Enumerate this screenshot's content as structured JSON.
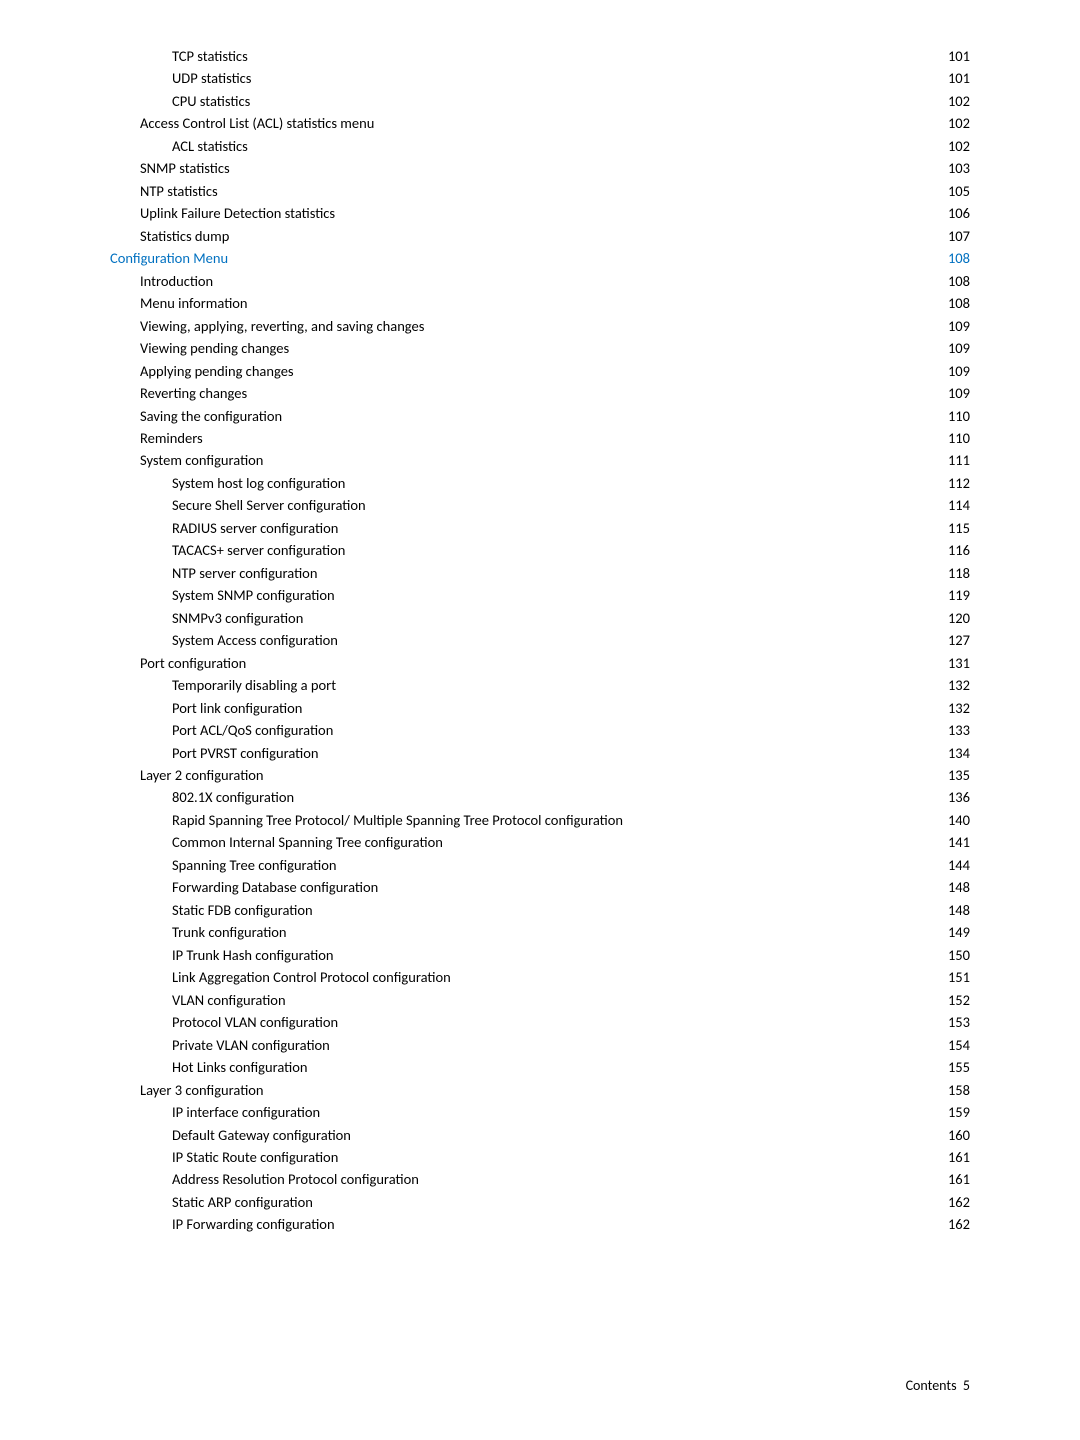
{
  "footer": {
    "label": "Contents",
    "page": "5"
  },
  "entries": [
    {
      "lvl": 2,
      "label": "TCP statistics",
      "page": "101"
    },
    {
      "lvl": 2,
      "label": "UDP statistics",
      "page": "101"
    },
    {
      "lvl": 2,
      "label": "CPU statistics",
      "page": "102"
    },
    {
      "lvl": 1,
      "label": "Access Control List (ACL) statistics menu",
      "page": "102"
    },
    {
      "lvl": 2,
      "label": "ACL statistics",
      "page": "102"
    },
    {
      "lvl": 1,
      "label": "SNMP statistics",
      "page": "103"
    },
    {
      "lvl": 1,
      "label": "NTP statistics",
      "page": "105"
    },
    {
      "lvl": 1,
      "label": "Uplink Failure Detection statistics",
      "page": "106"
    },
    {
      "lvl": 1,
      "label": "Statistics dump",
      "page": "107"
    },
    {
      "lvl": 0,
      "label": "Configuration Menu",
      "page": "108",
      "is_section": true
    },
    {
      "lvl": 1,
      "label": "Introduction",
      "page": "108"
    },
    {
      "lvl": 1,
      "label": "Menu information",
      "page": "108"
    },
    {
      "lvl": 1,
      "label": "Viewing, applying, reverting, and saving changes",
      "page": "109"
    },
    {
      "lvl": 1,
      "label": "Viewing pending changes",
      "page": "109"
    },
    {
      "lvl": 1,
      "label": "Applying pending changes",
      "page": "109"
    },
    {
      "lvl": 1,
      "label": "Reverting changes",
      "page": "109"
    },
    {
      "lvl": 1,
      "label": "Saving the configuration",
      "page": "110"
    },
    {
      "lvl": 1,
      "label": "Reminders",
      "page": "110"
    },
    {
      "lvl": 1,
      "label": "System configuration",
      "page": "111"
    },
    {
      "lvl": 2,
      "label": "System host log configuration",
      "page": "112"
    },
    {
      "lvl": 2,
      "label": "Secure Shell Server configuration",
      "page": "114"
    },
    {
      "lvl": 2,
      "label": "RADIUS server configuration",
      "page": "115"
    },
    {
      "lvl": 2,
      "label": "TACACS+ server configuration",
      "page": "116"
    },
    {
      "lvl": 2,
      "label": "NTP server configuration",
      "page": "118"
    },
    {
      "lvl": 2,
      "label": "System SNMP configuration",
      "page": "119"
    },
    {
      "lvl": 2,
      "label": "SNMPv3 configuration",
      "page": "120"
    },
    {
      "lvl": 2,
      "label": "System Access configuration",
      "page": "127"
    },
    {
      "lvl": 1,
      "label": "Port configuration",
      "page": "131"
    },
    {
      "lvl": 2,
      "label": "Temporarily disabling a port",
      "page": "132"
    },
    {
      "lvl": 2,
      "label": "Port link configuration",
      "page": "132"
    },
    {
      "lvl": 2,
      "label": "Port ACL/QoS configuration",
      "page": "133"
    },
    {
      "lvl": 2,
      "label": "Port PVRST configuration",
      "page": "134"
    },
    {
      "lvl": 1,
      "label": "Layer 2 configuration",
      "page": "135"
    },
    {
      "lvl": 2,
      "label": "802.1X configuration",
      "page": "136"
    },
    {
      "lvl": 2,
      "label": "Rapid Spanning Tree Protocol/ Multiple Spanning Tree Protocol configuration",
      "page": "140"
    },
    {
      "lvl": 2,
      "label": "Common Internal Spanning Tree configuration",
      "page": "141"
    },
    {
      "lvl": 2,
      "label": "Spanning Tree configuration",
      "page": "144"
    },
    {
      "lvl": 2,
      "label": "Forwarding Database configuration",
      "page": "148"
    },
    {
      "lvl": 2,
      "label": "Static FDB configuration",
      "page": "148"
    },
    {
      "lvl": 2,
      "label": "Trunk configuration",
      "page": "149"
    },
    {
      "lvl": 2,
      "label": "IP Trunk Hash configuration",
      "page": "150"
    },
    {
      "lvl": 2,
      "label": "Link Aggregation Control Protocol configuration",
      "page": "151"
    },
    {
      "lvl": 2,
      "label": "VLAN configuration",
      "page": "152"
    },
    {
      "lvl": 2,
      "label": "Protocol VLAN configuration",
      "page": "153"
    },
    {
      "lvl": 2,
      "label": "Private VLAN configuration",
      "page": "154"
    },
    {
      "lvl": 2,
      "label": "Hot Links configuration",
      "page": "155"
    },
    {
      "lvl": 1,
      "label": "Layer 3 configuration",
      "page": "158"
    },
    {
      "lvl": 2,
      "label": "IP interface configuration",
      "page": "159"
    },
    {
      "lvl": 2,
      "label": "Default Gateway configuration",
      "page": "160"
    },
    {
      "lvl": 2,
      "label": "IP Static Route configuration",
      "page": "161"
    },
    {
      "lvl": 2,
      "label": "Address Resolution Protocol configuration",
      "page": "161"
    },
    {
      "lvl": 2,
      "label": "Static ARP configuration",
      "page": "162"
    },
    {
      "lvl": 2,
      "label": "IP Forwarding configuration",
      "page": "162"
    }
  ]
}
